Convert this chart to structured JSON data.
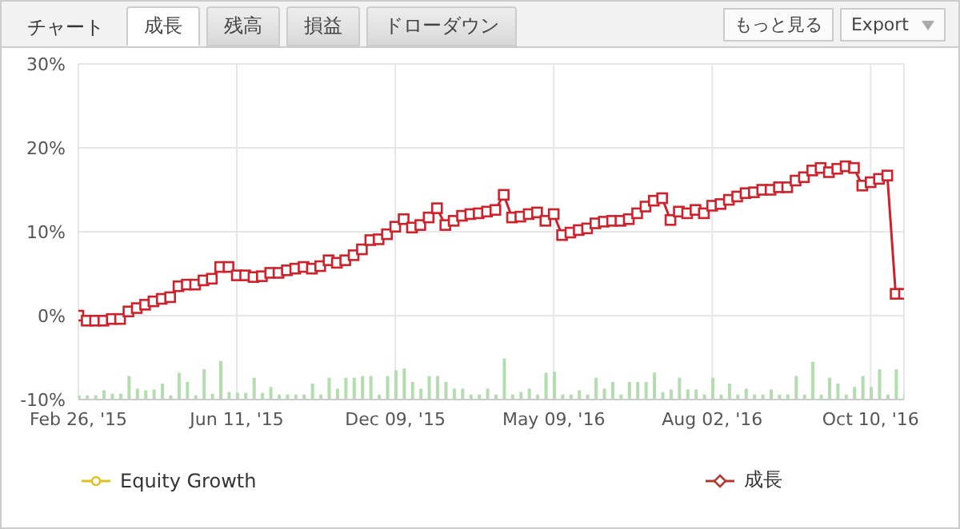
{
  "chart_data": {
    "type": "line",
    "annotations": [
      "チャート",
      "成長",
      "残高",
      "損益",
      "ドローダウン",
      "もっと見る",
      "Export"
    ],
    "categories": [
      "Feb 26, '15",
      null,
      null,
      null,
      null,
      null,
      null,
      null,
      null,
      null,
      null,
      null,
      null,
      null,
      null,
      null,
      null,
      null,
      null,
      "Jun 11, '15",
      null,
      null,
      null,
      null,
      null,
      null,
      null,
      null,
      null,
      null,
      null,
      null,
      null,
      null,
      null,
      null,
      null,
      null,
      "Dec 09, '15",
      null,
      null,
      null,
      null,
      null,
      null,
      null,
      null,
      null,
      null,
      null,
      null,
      null,
      null,
      null,
      null,
      null,
      null,
      "May 09, '16",
      null,
      null,
      null,
      null,
      null,
      null,
      null,
      null,
      null,
      null,
      null,
      null,
      null,
      null,
      null,
      null,
      null,
      null,
      "Aug 02, '16",
      null,
      null,
      null,
      null,
      null,
      null,
      null,
      null,
      null,
      null,
      null,
      null,
      null,
      null,
      null,
      null,
      null,
      null,
      "Oct 10, '16",
      null,
      null,
      null,
      null
    ],
    "series": [
      {
        "type": "bar",
        "color": "#b3dcaf",
        "base": [
          -10,
          -10,
          -10,
          -10,
          -10,
          -10,
          -10,
          -10,
          -10,
          -10,
          -10,
          -10,
          -10,
          -10,
          -10,
          -10,
          -10,
          -10,
          -10,
          -10,
          -10,
          -10,
          -10,
          -10,
          -10,
          -10,
          -10,
          -10,
          -10,
          -10,
          -10,
          -10,
          -10,
          -10,
          -10,
          -10,
          -10,
          -10,
          -10,
          -10,
          -10,
          -10,
          -10,
          -10,
          -10,
          -10,
          -10,
          -10,
          -10,
          -10,
          -10,
          -10,
          -10,
          -10,
          -10,
          -10,
          -10,
          -10,
          -10,
          -10,
          -10,
          -10,
          -10,
          -10,
          -10,
          -10,
          -10,
          -10,
          -10,
          -10,
          -10,
          -10,
          -10,
          -10,
          -10,
          -10,
          -10,
          -10,
          -10,
          -10,
          -10,
          -10,
          -10,
          -10,
          -10,
          -10,
          -10,
          -10,
          -10,
          -10,
          -10,
          -10,
          -10,
          -10,
          -10,
          -10,
          -10,
          -10,
          -10,
          -10
        ],
        "values": [
          0.5,
          0.5,
          0.5,
          1.1,
          0.7,
          0.7,
          2.8,
          1.3,
          1.1,
          1.2,
          1.9,
          0.5,
          3.2,
          2.1,
          0.5,
          3.6,
          0.7,
          4.6,
          0.9,
          0.8,
          0.8,
          2.6,
          0.8,
          1.5,
          0.6,
          0.6,
          0.6,
          0.6,
          1.9,
          0.6,
          2.6,
          1.3,
          2.6,
          2.6,
          2.8,
          2.8,
          0.6,
          2.8,
          3.5,
          3.7,
          2.1,
          1.3,
          2.8,
          2.8,
          2.1,
          1.3,
          1.3,
          0.6,
          0.6,
          1.3,
          0.6,
          4.9,
          0.6,
          0.9,
          1.3,
          0.6,
          3.2,
          3.3,
          0.6,
          0.6,
          1.1,
          0.6,
          2.6,
          1.3,
          2.1,
          0.6,
          2.1,
          2.1,
          2.1,
          3.2,
          0.9,
          1.2,
          2.6,
          1.2,
          1.2,
          0.6,
          2.6,
          0.6,
          1.9,
          0.6,
          1.3,
          0.6,
          0.6,
          1.2,
          0.6,
          0.6,
          2.8,
          0.6,
          4.5,
          0.6,
          2.6,
          1.9,
          0.6,
          1.5,
          2.8,
          1.5,
          3.6,
          0.6,
          3.6,
          0.6
        ]
      },
      {
        "name": "Equity Growth",
        "color": "#e0c020",
        "marker": "circle",
        "values": [
          null,
          null,
          null,
          null,
          null,
          null,
          null,
          null,
          null,
          null,
          null,
          null,
          null,
          null,
          null,
          null,
          null,
          null,
          null,
          null,
          null,
          null,
          null,
          null,
          null,
          null,
          null,
          null,
          null,
          null,
          null,
          null,
          null,
          null,
          null,
          null,
          null,
          null,
          null,
          null,
          null,
          null,
          null,
          null,
          null,
          null,
          null,
          null,
          null,
          null,
          null,
          null,
          null,
          null,
          null,
          null,
          null,
          null,
          null,
          null,
          null,
          null,
          null,
          null,
          null,
          null,
          null,
          null,
          null,
          null,
          null,
          null,
          null,
          null,
          null,
          null,
          null,
          null,
          null,
          null,
          null,
          null,
          null,
          null,
          null,
          null,
          null,
          null,
          null,
          null,
          null,
          null,
          null,
          null,
          null,
          null,
          null,
          null,
          null,
          null
        ]
      },
      {
        "name": "成長",
        "color": "#b03a2e",
        "marker": "diamond",
        "values": [
          null,
          null,
          null,
          null,
          null,
          null,
          null,
          null,
          null,
          null,
          null,
          null,
          null,
          null,
          null,
          null,
          null,
          null,
          null,
          null,
          null,
          null,
          null,
          null,
          null,
          null,
          null,
          null,
          null,
          null,
          null,
          null,
          null,
          null,
          null,
          null,
          null,
          null,
          null,
          null,
          null,
          null,
          null,
          null,
          null,
          null,
          null,
          null,
          null,
          null,
          null,
          null,
          null,
          null,
          null,
          null,
          null,
          null,
          null,
          null,
          null,
          null,
          null,
          null,
          null,
          null,
          null,
          null,
          null,
          null,
          null,
          null,
          null,
          null,
          null,
          null,
          null,
          null,
          null,
          null,
          null,
          null,
          null,
          null,
          null,
          null,
          null,
          null,
          null,
          null,
          null,
          null,
          null,
          null,
          null,
          null,
          null,
          null,
          null,
          null
        ]
      },
      {
        "color": "#d0202a",
        "marker": "square",
        "values": [
          0,
          -0.6,
          -0.6,
          -0.6,
          -0.4,
          -0.4,
          0.5,
          0.9,
          1.3,
          1.7,
          2.0,
          2.2,
          3.5,
          3.7,
          3.7,
          4.2,
          4.4,
          5.8,
          5.8,
          4.8,
          4.8,
          4.6,
          4.7,
          5.1,
          5.1,
          5.4,
          5.6,
          5.8,
          5.6,
          5.9,
          6.6,
          6.3,
          6.6,
          7.2,
          7.9,
          9.0,
          9.1,
          9.7,
          10.6,
          11.5,
          10.5,
          10.8,
          11.7,
          12.8,
          10.8,
          11.3,
          11.9,
          12.1,
          12.2,
          12.4,
          12.6,
          14.4,
          11.7,
          11.8,
          12.1,
          12.3,
          11.3,
          12.1,
          9.6,
          9.9,
          10.2,
          10.4,
          11.0,
          11.2,
          11.3,
          11.3,
          11.5,
          12.2,
          13.0,
          13.7,
          14.0,
          11.4,
          12.4,
          12.2,
          12.6,
          12.2,
          13.1,
          13.3,
          13.8,
          14.2,
          14.6,
          14.7,
          15.0,
          15.0,
          15.3,
          15.3,
          16.1,
          16.5,
          17.3,
          17.6,
          17.1,
          17.5,
          17.8,
          17.6,
          15.5,
          15.9,
          16.3,
          16.7,
          2.6,
          2.6
        ]
      }
    ],
    "ylim": [
      -10,
      30
    ],
    "yticks": [
      {
        "value": -10,
        "label": "-10%"
      },
      {
        "value": 0,
        "label": "0%"
      },
      {
        "value": 10,
        "label": "10%"
      },
      {
        "value": 20,
        "label": "20%"
      },
      {
        "value": 30,
        "label": "30%"
      }
    ],
    "grid": true,
    "legend": "bottom",
    "line_style": "solid"
  }
}
